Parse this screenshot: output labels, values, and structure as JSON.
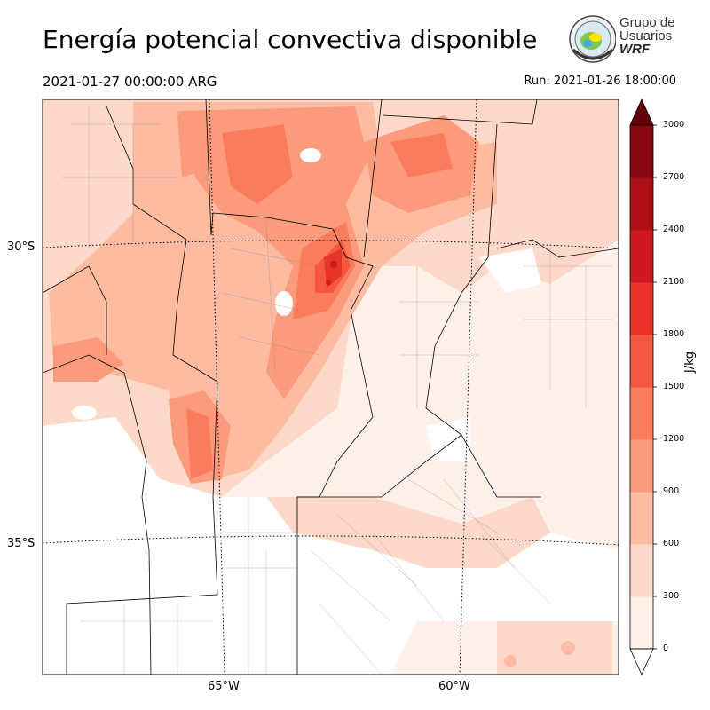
{
  "header": {
    "title": "Energía potencial convectiva disponible",
    "valid_time": "2021-01-27 00:00:00 ARG",
    "run_time": "Run: 2021-01-26 18:00:00"
  },
  "logo": {
    "line1": "Grupo de",
    "line2": "Usuarios",
    "line3": "WRF"
  },
  "map": {
    "lat_labels": [
      "30°S",
      "35°S"
    ],
    "lon_labels": [
      "65°W",
      "60°W"
    ]
  },
  "colorbar": {
    "unit": "J/kg",
    "ticks": [
      "0",
      "300",
      "600",
      "900",
      "1200",
      "1500",
      "1800",
      "2100",
      "2400",
      "2700",
      "3000"
    ],
    "colors": [
      "#fff0e9",
      "#fed9c9",
      "#fdbba1",
      "#fc9b7c",
      "#fb7c5c",
      "#f6573f",
      "#e83429",
      "#ce1a1e",
      "#ad1117",
      "#850812"
    ],
    "over_color": "#67000d",
    "under_color": "#ffffff"
  }
}
